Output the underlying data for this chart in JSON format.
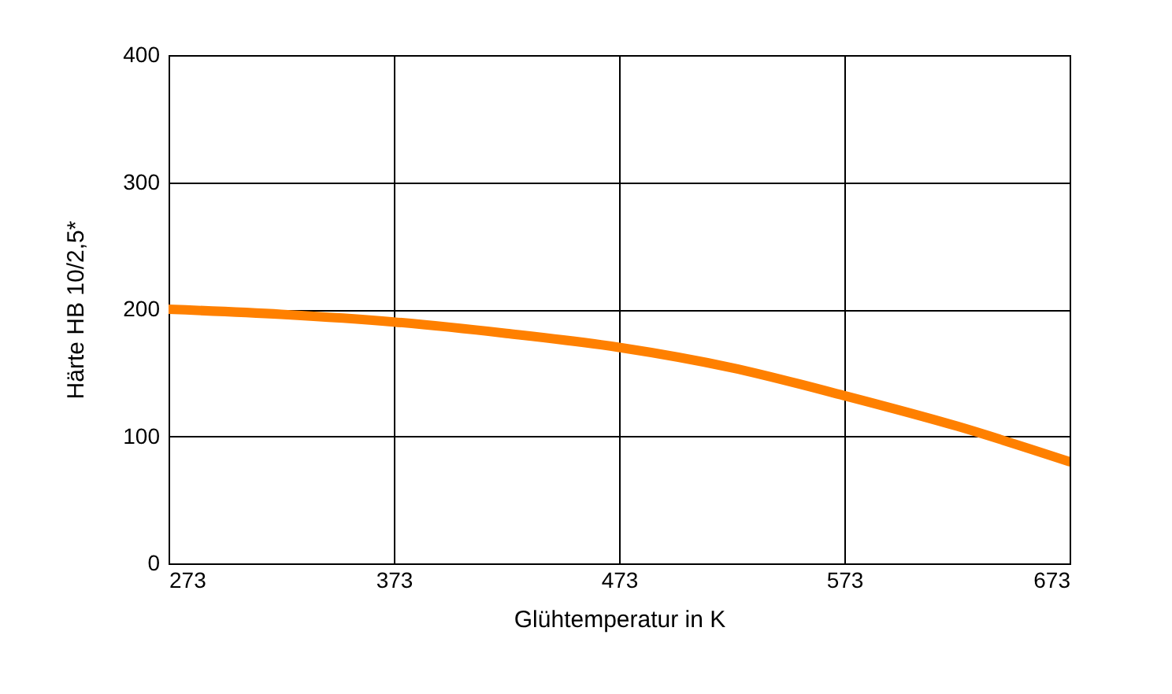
{
  "chart_data": {
    "type": "line",
    "xlabel": "Glühtemperatur in K",
    "ylabel": "Härte HB 10/2,5*",
    "x": [
      273,
      323,
      373,
      423,
      473,
      523,
      573,
      623,
      673
    ],
    "series": [
      {
        "color": "#ff8000",
        "values": [
          200,
          196,
          190,
          181,
          170,
          154,
          132,
          108,
          80
        ]
      }
    ],
    "xlim": [
      273,
      673
    ],
    "xticks": [
      273,
      373,
      473,
      573,
      673
    ],
    "ylim": [
      0,
      400
    ],
    "yticks": [
      0,
      100,
      200,
      300,
      400
    ],
    "grid": true,
    "marker": "none",
    "line_style": "solid"
  }
}
